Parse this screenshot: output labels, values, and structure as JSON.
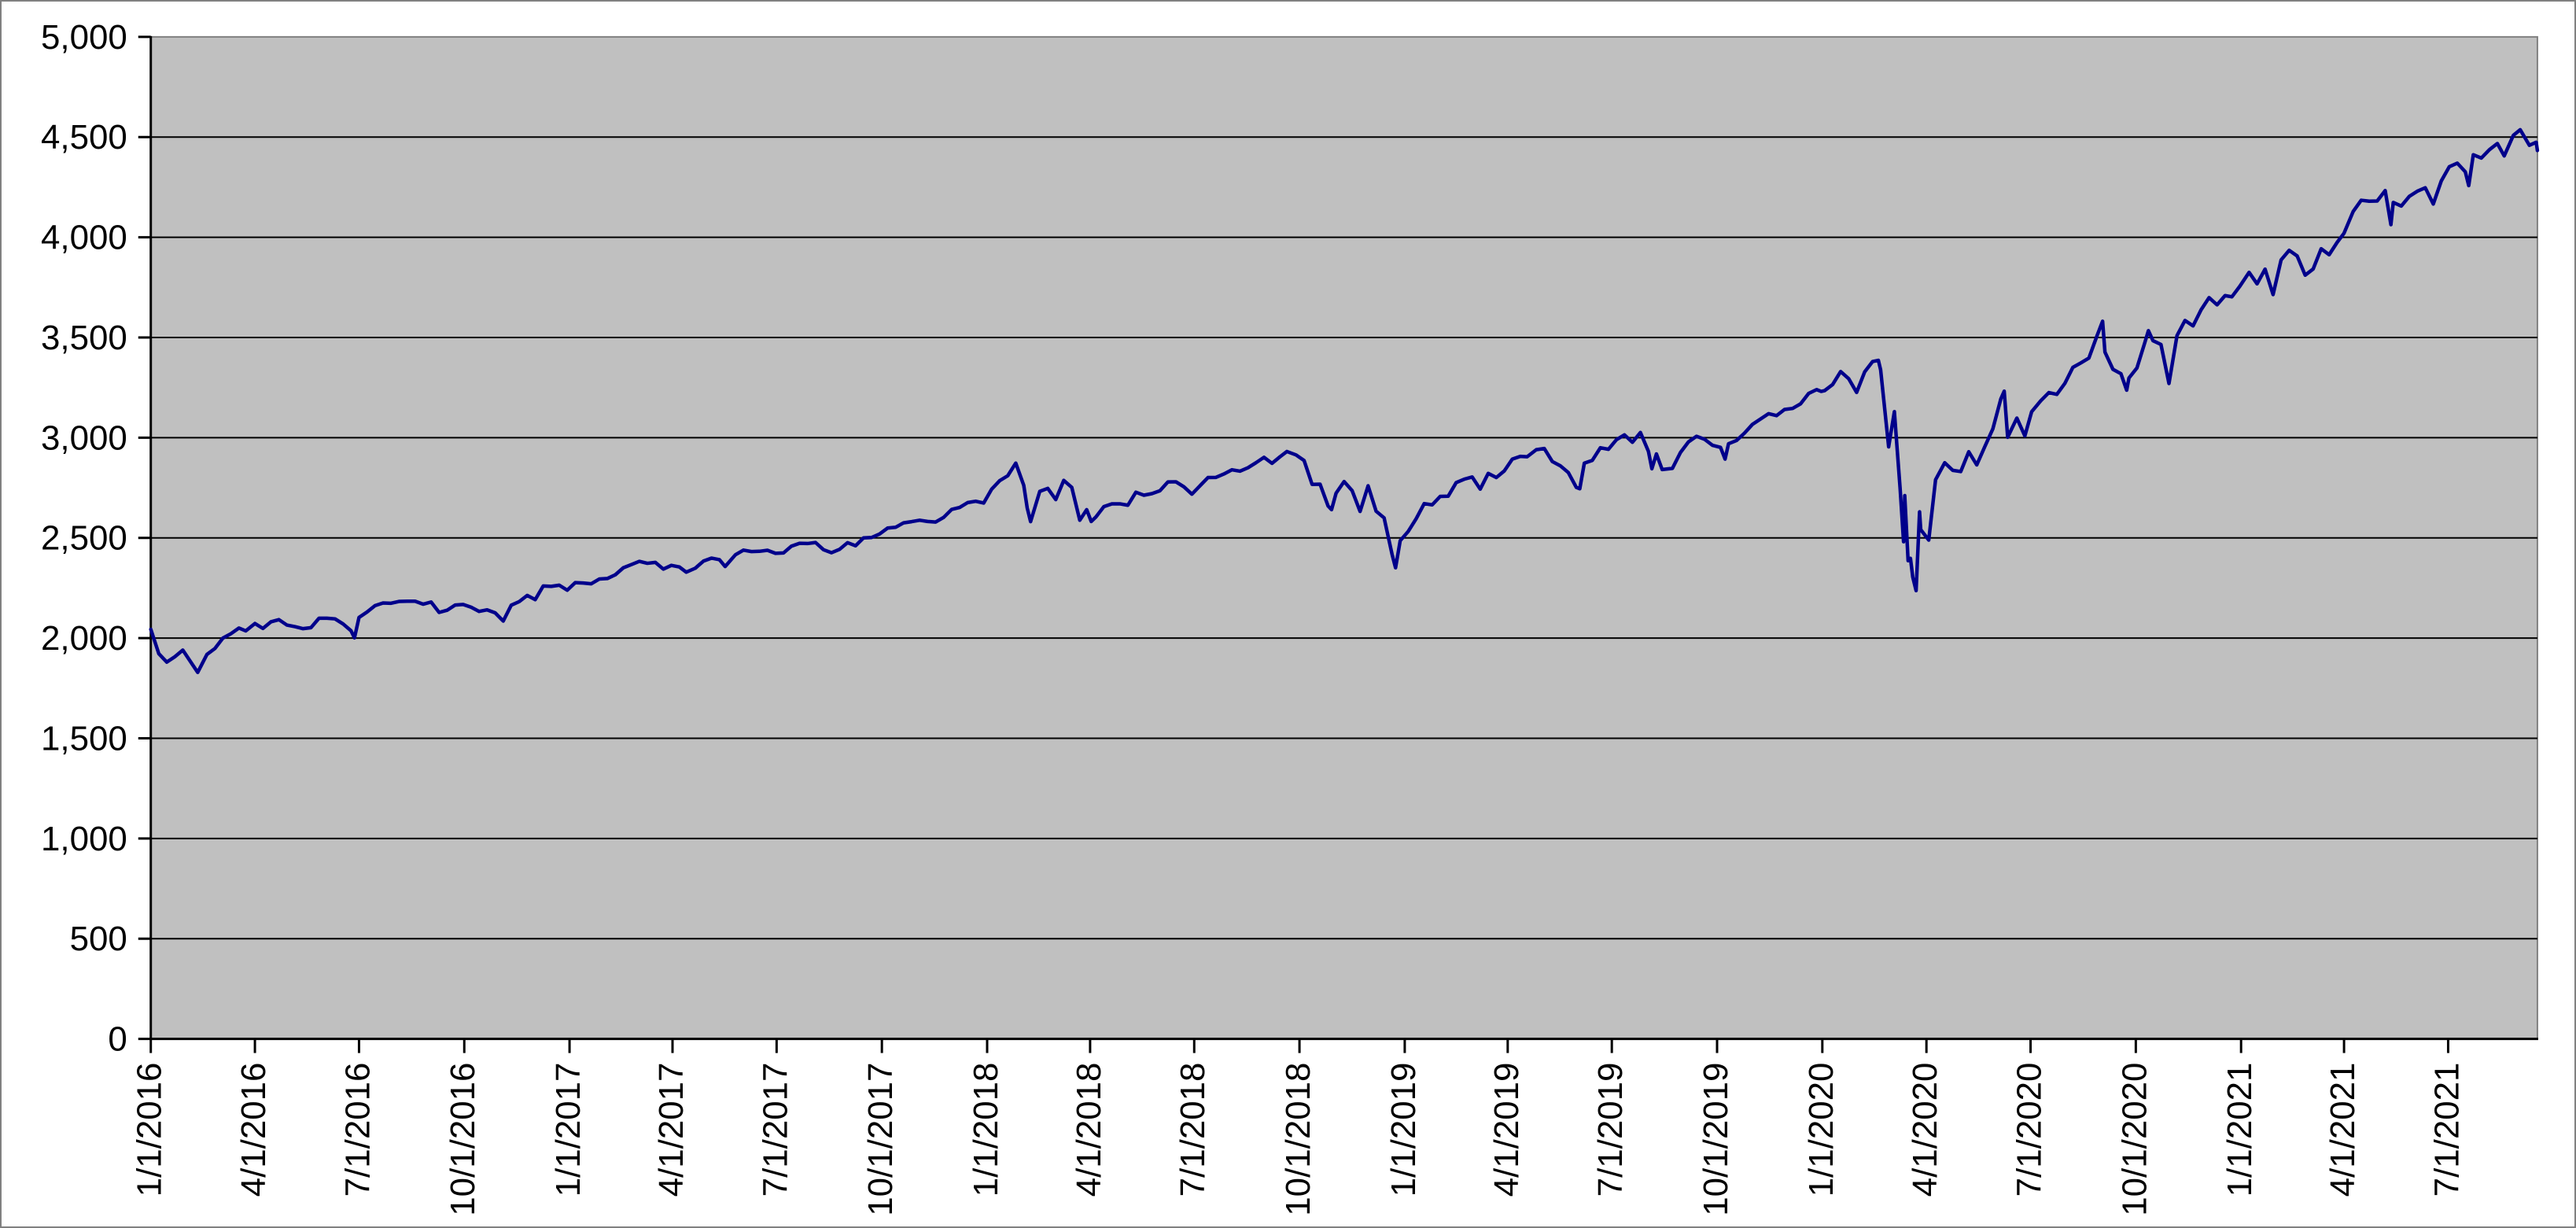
{
  "chart_data": {
    "type": "line",
    "title": "",
    "series_name": "index-price-series",
    "legend": "none",
    "grid": true,
    "colors": {
      "line": "#00008B",
      "plot_background": "#C0C0C0",
      "gridline": "#000000",
      "axis": "#000000",
      "plot_border": "#808080",
      "chart_border": "#808080",
      "label": "#000000"
    },
    "y_axis": {
      "min": 0,
      "max": 5000,
      "step": 500,
      "tick_labels": [
        "0",
        "500",
        "1,000",
        "1,500",
        "2,000",
        "2,500",
        "3,000",
        "3,500",
        "4,000",
        "4,500",
        "5,000"
      ]
    },
    "x_axis": {
      "start": "1/1/2016",
      "end": "9/17/2021",
      "tick_labels": [
        "1/1/2016",
        "4/1/2016",
        "7/1/2016",
        "10/1/2016",
        "1/1/2017",
        "4/1/2017",
        "7/1/2017",
        "10/1/2017",
        "1/1/2018",
        "4/1/2018",
        "7/1/2018",
        "10/1/2018",
        "1/1/2019",
        "4/1/2019",
        "7/1/2019",
        "10/1/2019",
        "1/1/2020",
        "4/1/2020",
        "7/1/2020",
        "10/1/2020",
        "1/1/2021",
        "4/1/2021",
        "7/1/2021"
      ]
    },
    "points": [
      [
        "1/1/2016",
        2044
      ],
      [
        "1/8/2016",
        1922
      ],
      [
        "1/15/2016",
        1880
      ],
      [
        "1/22/2016",
        1907
      ],
      [
        "1/29/2016",
        1940
      ],
      [
        "2/5/2016",
        1880
      ],
      [
        "2/11/2016",
        1829
      ],
      [
        "2/19/2016",
        1918
      ],
      [
        "2/26/2016",
        1948
      ],
      [
        "3/4/2016",
        2000
      ],
      [
        "3/11/2016",
        2022
      ],
      [
        "3/18/2016",
        2050
      ],
      [
        "3/24/2016",
        2036
      ],
      [
        "4/1/2016",
        2073
      ],
      [
        "4/8/2016",
        2048
      ],
      [
        "4/15/2016",
        2081
      ],
      [
        "4/22/2016",
        2092
      ],
      [
        "4/29/2016",
        2065
      ],
      [
        "5/6/2016",
        2057
      ],
      [
        "5/13/2016",
        2047
      ],
      [
        "5/20/2016",
        2052
      ],
      [
        "5/27/2016",
        2099
      ],
      [
        "6/3/2016",
        2099
      ],
      [
        "6/10/2016",
        2096
      ],
      [
        "6/17/2016",
        2071
      ],
      [
        "6/24/2016",
        2037
      ],
      [
        "6/27/2016",
        2001
      ],
      [
        "7/1/2016",
        2103
      ],
      [
        "7/8/2016",
        2130
      ],
      [
        "7/15/2016",
        2162
      ],
      [
        "7/22/2016",
        2175
      ],
      [
        "7/29/2016",
        2174
      ],
      [
        "8/5/2016",
        2183
      ],
      [
        "8/12/2016",
        2184
      ],
      [
        "8/19/2016",
        2184
      ],
      [
        "8/26/2016",
        2169
      ],
      [
        "9/2/2016",
        2180
      ],
      [
        "9/9/2016",
        2128
      ],
      [
        "9/16/2016",
        2139
      ],
      [
        "9/23/2016",
        2165
      ],
      [
        "9/30/2016",
        2168
      ],
      [
        "10/7/2016",
        2154
      ],
      [
        "10/14/2016",
        2133
      ],
      [
        "10/21/2016",
        2141
      ],
      [
        "10/28/2016",
        2126
      ],
      [
        "11/4/2016",
        2085
      ],
      [
        "11/11/2016",
        2164
      ],
      [
        "11/18/2016",
        2182
      ],
      [
        "11/25/2016",
        2213
      ],
      [
        "12/2/2016",
        2192
      ],
      [
        "12/9/2016",
        2260
      ],
      [
        "12/16/2016",
        2258
      ],
      [
        "12/23/2016",
        2264
      ],
      [
        "12/30/2016",
        2239
      ],
      [
        "1/6/2017",
        2277
      ],
      [
        "1/13/2017",
        2275
      ],
      [
        "1/20/2017",
        2271
      ],
      [
        "1/27/2017",
        2295
      ],
      [
        "2/3/2017",
        2297
      ],
      [
        "2/10/2017",
        2316
      ],
      [
        "2/17/2017",
        2351
      ],
      [
        "2/24/2017",
        2367
      ],
      [
        "3/3/2017",
        2383
      ],
      [
        "3/10/2017",
        2373
      ],
      [
        "3/17/2017",
        2378
      ],
      [
        "3/24/2017",
        2344
      ],
      [
        "3/31/2017",
        2363
      ],
      [
        "4/7/2017",
        2355
      ],
      [
        "4/13/2017",
        2329
      ],
      [
        "4/21/2017",
        2349
      ],
      [
        "4/28/2017",
        2384
      ],
      [
        "5/5/2017",
        2399
      ],
      [
        "5/12/2017",
        2391
      ],
      [
        "5/17/2017",
        2357
      ],
      [
        "5/26/2017",
        2416
      ],
      [
        "6/2/2017",
        2439
      ],
      [
        "6/9/2017",
        2432
      ],
      [
        "6/16/2017",
        2433
      ],
      [
        "6/23/2017",
        2438
      ],
      [
        "6/30/2017",
        2423
      ],
      [
        "7/7/2017",
        2425
      ],
      [
        "7/14/2017",
        2459
      ],
      [
        "7/21/2017",
        2473
      ],
      [
        "7/28/2017",
        2472
      ],
      [
        "8/4/2017",
        2477
      ],
      [
        "8/11/2017",
        2441
      ],
      [
        "8/18/2017",
        2426
      ],
      [
        "8/25/2017",
        2443
      ],
      [
        "9/1/2017",
        2476
      ],
      [
        "9/8/2017",
        2461
      ],
      [
        "9/15/2017",
        2500
      ],
      [
        "9/22/2017",
        2502
      ],
      [
        "9/29/2017",
        2519
      ],
      [
        "10/6/2017",
        2549
      ],
      [
        "10/13/2017",
        2553
      ],
      [
        "10/20/2017",
        2575
      ],
      [
        "10/27/2017",
        2581
      ],
      [
        "11/3/2017",
        2588
      ],
      [
        "11/10/2017",
        2582
      ],
      [
        "11/17/2017",
        2579
      ],
      [
        "11/24/2017",
        2602
      ],
      [
        "12/1/2017",
        2642
      ],
      [
        "12/8/2017",
        2652
      ],
      [
        "12/15/2017",
        2676
      ],
      [
        "12/22/2017",
        2683
      ],
      [
        "12/29/2017",
        2674
      ],
      [
        "1/5/2018",
        2743
      ],
      [
        "1/12/2018",
        2786
      ],
      [
        "1/19/2018",
        2810
      ],
      [
        "1/26/2018",
        2873
      ],
      [
        "2/2/2018",
        2762
      ],
      [
        "2/5/2018",
        2649
      ],
      [
        "2/8/2018",
        2581
      ],
      [
        "2/16/2018",
        2732
      ],
      [
        "2/23/2018",
        2747
      ],
      [
        "3/2/2018",
        2691
      ],
      [
        "3/9/2018",
        2787
      ],
      [
        "3/16/2018",
        2752
      ],
      [
        "3/23/2018",
        2588
      ],
      [
        "3/29/2018",
        2641
      ],
      [
        "4/2/2018",
        2582
      ],
      [
        "4/6/2018",
        2604
      ],
      [
        "4/13/2018",
        2656
      ],
      [
        "4/20/2018",
        2670
      ],
      [
        "4/27/2018",
        2670
      ],
      [
        "5/4/2018",
        2663
      ],
      [
        "5/11/2018",
        2728
      ],
      [
        "5/18/2018",
        2713
      ],
      [
        "5/25/2018",
        2721
      ],
      [
        "6/1/2018",
        2735
      ],
      [
        "6/8/2018",
        2779
      ],
      [
        "6/15/2018",
        2780
      ],
      [
        "6/22/2018",
        2755
      ],
      [
        "6/29/2018",
        2718
      ],
      [
        "7/6/2018",
        2760
      ],
      [
        "7/13/2018",
        2801
      ],
      [
        "7/20/2018",
        2802
      ],
      [
        "7/27/2018",
        2819
      ],
      [
        "8/3/2018",
        2840
      ],
      [
        "8/10/2018",
        2833
      ],
      [
        "8/17/2018",
        2850
      ],
      [
        "8/24/2018",
        2875
      ],
      [
        "8/31/2018",
        2902
      ],
      [
        "9/7/2018",
        2872
      ],
      [
        "9/14/2018",
        2905
      ],
      [
        "9/20/2018",
        2931
      ],
      [
        "9/28/2018",
        2914
      ],
      [
        "10/5/2018",
        2886
      ],
      [
        "10/12/2018",
        2767
      ],
      [
        "10/19/2018",
        2768
      ],
      [
        "10/26/2018",
        2659
      ],
      [
        "10/29/2018",
        2641
      ],
      [
        "11/2/2018",
        2723
      ],
      [
        "11/9/2018",
        2781
      ],
      [
        "11/16/2018",
        2736
      ],
      [
        "11/23/2018",
        2632
      ],
      [
        "11/30/2018",
        2760
      ],
      [
        "12/7/2018",
        2633
      ],
      [
        "12/14/2018",
        2600
      ],
      [
        "12/21/2018",
        2417
      ],
      [
        "12/24/2018",
        2351
      ],
      [
        "12/28/2018",
        2486
      ],
      [
        "1/4/2019",
        2532
      ],
      [
        "1/11/2019",
        2596
      ],
      [
        "1/18/2019",
        2671
      ],
      [
        "1/25/2019",
        2665
      ],
      [
        "2/1/2019",
        2707
      ],
      [
        "2/8/2019",
        2708
      ],
      [
        "2/15/2019",
        2776
      ],
      [
        "2/22/2019",
        2793
      ],
      [
        "3/1/2019",
        2804
      ],
      [
        "3/8/2019",
        2743
      ],
      [
        "3/15/2019",
        2822
      ],
      [
        "3/22/2019",
        2801
      ],
      [
        "3/29/2019",
        2834
      ],
      [
        "4/5/2019",
        2893
      ],
      [
        "4/12/2019",
        2907
      ],
      [
        "4/18/2019",
        2905
      ],
      [
        "4/26/2019",
        2940
      ],
      [
        "5/3/2019",
        2946
      ],
      [
        "5/10/2019",
        2881
      ],
      [
        "5/17/2019",
        2860
      ],
      [
        "5/24/2019",
        2826
      ],
      [
        "5/31/2019",
        2752
      ],
      [
        "6/3/2019",
        2745
      ],
      [
        "6/7/2019",
        2873
      ],
      [
        "6/14/2019",
        2887
      ],
      [
        "6/21/2019",
        2950
      ],
      [
        "6/28/2019",
        2942
      ],
      [
        "7/5/2019",
        2990
      ],
      [
        "7/12/2019",
        3014
      ],
      [
        "7/19/2019",
        2977
      ],
      [
        "7/26/2019",
        3026
      ],
      [
        "8/2/2019",
        2932
      ],
      [
        "8/5/2019",
        2845
      ],
      [
        "8/9/2019",
        2919
      ],
      [
        "8/14/2019",
        2841
      ],
      [
        "8/23/2019",
        2847
      ],
      [
        "8/30/2019",
        2926
      ],
      [
        "9/6/2019",
        2979
      ],
      [
        "9/13/2019",
        3007
      ],
      [
        "9/20/2019",
        2992
      ],
      [
        "9/27/2019",
        2962
      ],
      [
        "10/4/2019",
        2952
      ],
      [
        "10/8/2019",
        2893
      ],
      [
        "10/11/2019",
        2970
      ],
      [
        "10/18/2019",
        2986
      ],
      [
        "10/25/2019",
        3023
      ],
      [
        "11/1/2019",
        3067
      ],
      [
        "11/8/2019",
        3093
      ],
      [
        "11/15/2019",
        3120
      ],
      [
        "11/22/2019",
        3110
      ],
      [
        "11/29/2019",
        3141
      ],
      [
        "12/6/2019",
        3146
      ],
      [
        "12/13/2019",
        3169
      ],
      [
        "12/20/2019",
        3221
      ],
      [
        "12/27/2019",
        3240
      ],
      [
        "12/31/2019",
        3231
      ],
      [
        "1/3/2020",
        3235
      ],
      [
        "1/10/2020",
        3265
      ],
      [
        "1/17/2020",
        3330
      ],
      [
        "1/24/2020",
        3295
      ],
      [
        "1/31/2020",
        3226
      ],
      [
        "2/7/2020",
        3328
      ],
      [
        "2/14/2020",
        3380
      ],
      [
        "2/19/2020",
        3386
      ],
      [
        "2/21/2020",
        3338
      ],
      [
        "2/28/2020",
        2954
      ],
      [
        "3/4/2020",
        3130
      ],
      [
        "3/6/2020",
        2972
      ],
      [
        "3/9/2020",
        2747
      ],
      [
        "3/12/2020",
        2481
      ],
      [
        "3/13/2020",
        2711
      ],
      [
        "3/16/2020",
        2386
      ],
      [
        "3/18/2020",
        2398
      ],
      [
        "3/20/2020",
        2305
      ],
      [
        "3/23/2020",
        2237
      ],
      [
        "3/26/2020",
        2630
      ],
      [
        "3/27/2020",
        2541
      ],
      [
        "4/3/2020",
        2489
      ],
      [
        "4/9/2020",
        2790
      ],
      [
        "4/17/2020",
        2875
      ],
      [
        "4/24/2020",
        2837
      ],
      [
        "5/1/2020",
        2831
      ],
      [
        "5/8/2020",
        2930
      ],
      [
        "5/15/2020",
        2864
      ],
      [
        "5/22/2020",
        2955
      ],
      [
        "5/29/2020",
        3044
      ],
      [
        "6/5/2020",
        3194
      ],
      [
        "6/8/2020",
        3232
      ],
      [
        "6/11/2020",
        3002
      ],
      [
        "6/19/2020",
        3098
      ],
      [
        "6/26/2020",
        3009
      ],
      [
        "7/2/2020",
        3130
      ],
      [
        "7/10/2020",
        3185
      ],
      [
        "7/17/2020",
        3225
      ],
      [
        "7/24/2020",
        3216
      ],
      [
        "7/31/2020",
        3271
      ],
      [
        "8/7/2020",
        3351
      ],
      [
        "8/14/2020",
        3373
      ],
      [
        "8/21/2020",
        3397
      ],
      [
        "8/28/2020",
        3508
      ],
      [
        "9/2/2020",
        3581
      ],
      [
        "9/4/2020",
        3427
      ],
      [
        "9/11/2020",
        3341
      ],
      [
        "9/18/2020",
        3319
      ],
      [
        "9/23/2020",
        3237
      ],
      [
        "9/25/2020",
        3298
      ],
      [
        "10/2/2020",
        3348
      ],
      [
        "10/9/2020",
        3477
      ],
      [
        "10/12/2020",
        3534
      ],
      [
        "10/16/2020",
        3484
      ],
      [
        "10/23/2020",
        3465
      ],
      [
        "10/30/2020",
        3270
      ],
      [
        "11/6/2020",
        3509
      ],
      [
        "11/13/2020",
        3585
      ],
      [
        "11/20/2020",
        3558
      ],
      [
        "11/27/2020",
        3638
      ],
      [
        "12/4/2020",
        3699
      ],
      [
        "12/11/2020",
        3663
      ],
      [
        "12/18/2020",
        3709
      ],
      [
        "12/24/2020",
        3703
      ],
      [
        "12/31/2020",
        3756
      ],
      [
        "1/8/2021",
        3825
      ],
      [
        "1/15/2021",
        3768
      ],
      [
        "1/22/2021",
        3841
      ],
      [
        "1/29/2021",
        3714
      ],
      [
        "2/5/2021",
        3887
      ],
      [
        "2/12/2021",
        3935
      ],
      [
        "2/19/2021",
        3907
      ],
      [
        "2/26/2021",
        3811
      ],
      [
        "3/5/2021",
        3842
      ],
      [
        "3/12/2021",
        3943
      ],
      [
        "3/19/2021",
        3913
      ],
      [
        "3/26/2021",
        3975
      ],
      [
        "4/1/2021",
        4020
      ],
      [
        "4/9/2021",
        4129
      ],
      [
        "4/16/2021",
        4185
      ],
      [
        "4/23/2021",
        4180
      ],
      [
        "4/30/2021",
        4181
      ],
      [
        "5/7/2021",
        4233
      ],
      [
        "5/12/2021",
        4063
      ],
      [
        "5/14/2021",
        4174
      ],
      [
        "5/21/2021",
        4156
      ],
      [
        "5/28/2021",
        4204
      ],
      [
        "6/4/2021",
        4230
      ],
      [
        "6/11/2021",
        4247
      ],
      [
        "6/18/2021",
        4166
      ],
      [
        "6/25/2021",
        4281
      ],
      [
        "7/2/2021",
        4352
      ],
      [
        "7/9/2021",
        4370
      ],
      [
        "7/16/2021",
        4327
      ],
      [
        "7/19/2021",
        4258
      ],
      [
        "7/23/2021",
        4412
      ],
      [
        "7/30/2021",
        4395
      ],
      [
        "8/6/2021",
        4437
      ],
      [
        "8/13/2021",
        4468
      ],
      [
        "8/19/2021",
        4406
      ],
      [
        "8/27/2021",
        4509
      ],
      [
        "9/2/2021",
        4537
      ],
      [
        "9/10/2021",
        4459
      ],
      [
        "9/16/2021",
        4474
      ],
      [
        "9/17/2021",
        4433
      ]
    ]
  }
}
